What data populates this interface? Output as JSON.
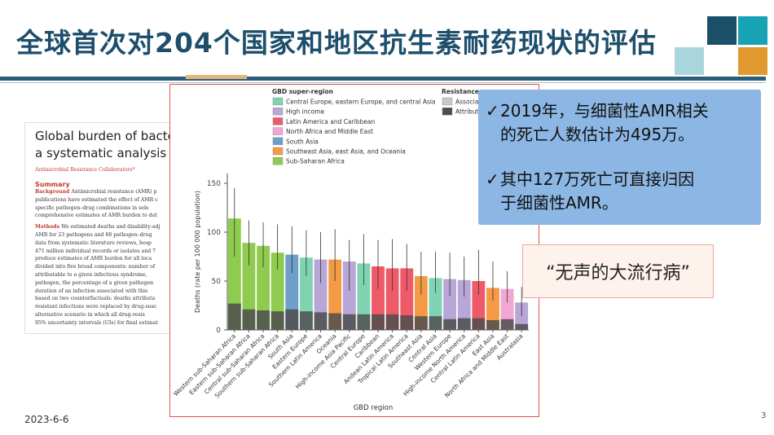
{
  "slide": {
    "title": "全球首次对204个国家和地区抗生素耐药现状的评估",
    "date": "2023-6-6",
    "page_number": "3",
    "brand_colors": {
      "dark_teal": "#1c4f68",
      "teal": "#17a3b4",
      "light_teal": "#a9d6dc",
      "orange": "#e2992f",
      "border_red": "#e8524f",
      "callout_blue": "#8cb6e3"
    }
  },
  "paper": {
    "title_line1": "Global burden of bacteria",
    "title_line2": "a systematic analysis",
    "authors": "Antimicrobial Resistance Collaborators*",
    "summary_heading": "Summary",
    "background_label": "Background",
    "background_lines": [
      "Antimicrobial resistance (AMR) p",
      "publications have estimated the effect of AMR c",
      "specific pathogen–drug combinations in sele",
      "comprehensive estimates of AMR burden to dat"
    ],
    "methods_label": "Methods",
    "methods_lines": [
      "We estimated deaths and disability-adj",
      "AMR for 23 pathogens and 88 pathogen–drug",
      "data from systematic literature reviews, hosp",
      "471 million individual records or isolates and 7",
      "produce estimates of AMR burden for all loca",
      "divided into five broad components: number of",
      "attributable to a given infectious syndrome,",
      "pathogen, the percentage of a given pathogen",
      "duration of an infection associated with this",
      "based on two counterfactuals: deaths attributa",
      "resistant infections were replaced by drug-susc",
      "alternative scenario in which all drug-resis",
      "95% uncertainty intervals (UIs) for final estimat"
    ]
  },
  "callout": {
    "bullets": [
      {
        "icon": "checkmark-icon",
        "check": "✓",
        "line1": "2019年，与细菌性AMR相关",
        "line2": "的死亡人数估计为495万。"
      },
      {
        "icon": "checkmark-icon",
        "check": "✓",
        "line1": "其中127万死亡可直接归因",
        "line2": "于细菌性AMR。"
      }
    ]
  },
  "quote": {
    "text": "“无声的大流行病”"
  },
  "legend": {
    "super_region_title": "GBD super-region",
    "super_regions": [
      {
        "name": "Central Europe, eastern Europe, and central Asia",
        "color": "#7fd3b2"
      },
      {
        "name": "High income",
        "color": "#b7a6d6"
      },
      {
        "name": "Latin America and Caribbean",
        "color": "#ef5a68"
      },
      {
        "name": "North Africa and Middle East",
        "color": "#f3a6d3"
      },
      {
        "name": "South Asia",
        "color": "#6d9fc9"
      },
      {
        "name": "Southeast Asia, east Asia, and Oceania",
        "color": "#f49a45"
      },
      {
        "name": "Sub-Saharan Africa",
        "color": "#8fcb4e"
      }
    ],
    "resistance_title": "Resistance",
    "resistance": [
      {
        "name": "Associat",
        "color": "#c8c8c8"
      },
      {
        "name": "Attribut",
        "color": "#4d4d4d"
      }
    ]
  },
  "chart_data": {
    "type": "bar",
    "xlabel": "GBD region",
    "ylabel": "Deaths (rate per 100 000 population)",
    "ylim": [
      0,
      160
    ],
    "yticks": [
      0,
      50,
      100,
      150
    ],
    "grid": false,
    "legend_position": "top-right",
    "categories": [
      "Western sub-Saharan Africa",
      "Eastern sub-Saharan Africa",
      "Central sub-Saharan Africa",
      "Southern sub-Saharan Africa",
      "South Asia",
      "Eastern Europe",
      "Southern Latin America",
      "Oceania",
      "High-income Asia Pacific",
      "Central Europe",
      "Caribbean",
      "Andean Latin America",
      "Tropical Latin America",
      "Southeast Asia",
      "Central Asia",
      "Western Europe",
      "High-income North America",
      "Central Latin America",
      "East Asia",
      "North Africa and Middle East",
      "Australasia"
    ],
    "super_region": [
      "Sub-Saharan Africa",
      "Sub-Saharan Africa",
      "Sub-Saharan Africa",
      "Sub-Saharan Africa",
      "South Asia",
      "Central Europe, eastern Europe, and central Asia",
      "High income",
      "Southeast Asia, east Asia, and Oceania",
      "High income",
      "Central Europe, eastern Europe, and central Asia",
      "Latin America and Caribbean",
      "Latin America and Caribbean",
      "Latin America and Caribbean",
      "Southeast Asia, east Asia, and Oceania",
      "Central Europe, eastern Europe, and central Asia",
      "High income",
      "High income",
      "Latin America and Caribbean",
      "Southeast Asia, east Asia, and Oceania",
      "North Africa and Middle East",
      "High income"
    ],
    "series": [
      {
        "name": "Associat",
        "values": [
          114,
          89,
          86,
          79,
          77,
          74,
          72,
          72,
          70,
          68,
          65,
          63,
          63,
          55,
          53,
          52,
          51,
          50,
          43,
          42,
          28
        ]
      },
      {
        "name": "Attribut",
        "values": [
          27,
          21,
          20,
          19,
          21,
          19,
          18,
          17,
          16,
          16,
          16,
          16,
          15,
          14,
          14,
          11,
          12,
          12,
          10,
          11,
          6
        ]
      }
    ],
    "error_upper": [
      145,
      112,
      110,
      108,
      106,
      102,
      100,
      103,
      92,
      98,
      92,
      93,
      88,
      80,
      80,
      79,
      75,
      82,
      70,
      60,
      44
    ],
    "error_lower": [
      75,
      66,
      64,
      62,
      58,
      55,
      48,
      50,
      40,
      46,
      42,
      40,
      40,
      36,
      38,
      35,
      34,
      36,
      30,
      28,
      14
    ]
  }
}
